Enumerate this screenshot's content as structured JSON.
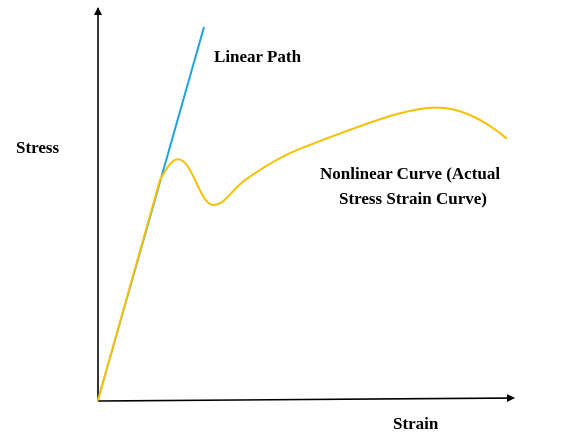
{
  "labels": {
    "y_axis": "Stress",
    "x_axis": "Strain",
    "linear": "Linear Path",
    "nonlinear_line1": "Nonlinear Curve (Actual",
    "nonlinear_line2": "Stress Strain Curve)"
  },
  "colors": {
    "axis": "#000000",
    "linear_path": "#1fa3dc",
    "nonlinear_curve": "#f5c000"
  }
}
